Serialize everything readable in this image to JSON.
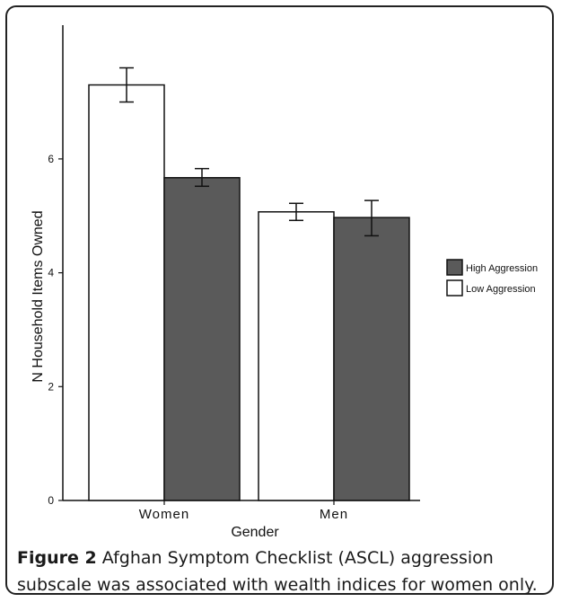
{
  "chart_data": {
    "type": "bar",
    "xlabel": "Gender",
    "ylabel": "N Household Items Owned",
    "categories": [
      "Women",
      "Men"
    ],
    "series": [
      {
        "name": "Low Aggression",
        "color": "#ffffff",
        "values": [
          7.3,
          5.07
        ],
        "err_low": [
          7.0,
          4.92
        ],
        "err_high": [
          7.6,
          5.22
        ]
      },
      {
        "name": "High Aggression",
        "color": "#5a5a5a",
        "values": [
          5.67,
          4.97
        ],
        "err_low": [
          5.52,
          4.65
        ],
        "err_high": [
          5.83,
          5.27
        ]
      }
    ],
    "ylim": [
      0,
      8.35
    ],
    "yticks": [
      0,
      2,
      4,
      6
    ],
    "legend_position": "right",
    "legend_order": [
      "High Aggression",
      "Low Aggression"
    ]
  },
  "caption": {
    "label": "Figure 2",
    "text": " Afghan Symptom Checklist (ASCL) aggression subscale was associated with wealth indices for women only."
  }
}
